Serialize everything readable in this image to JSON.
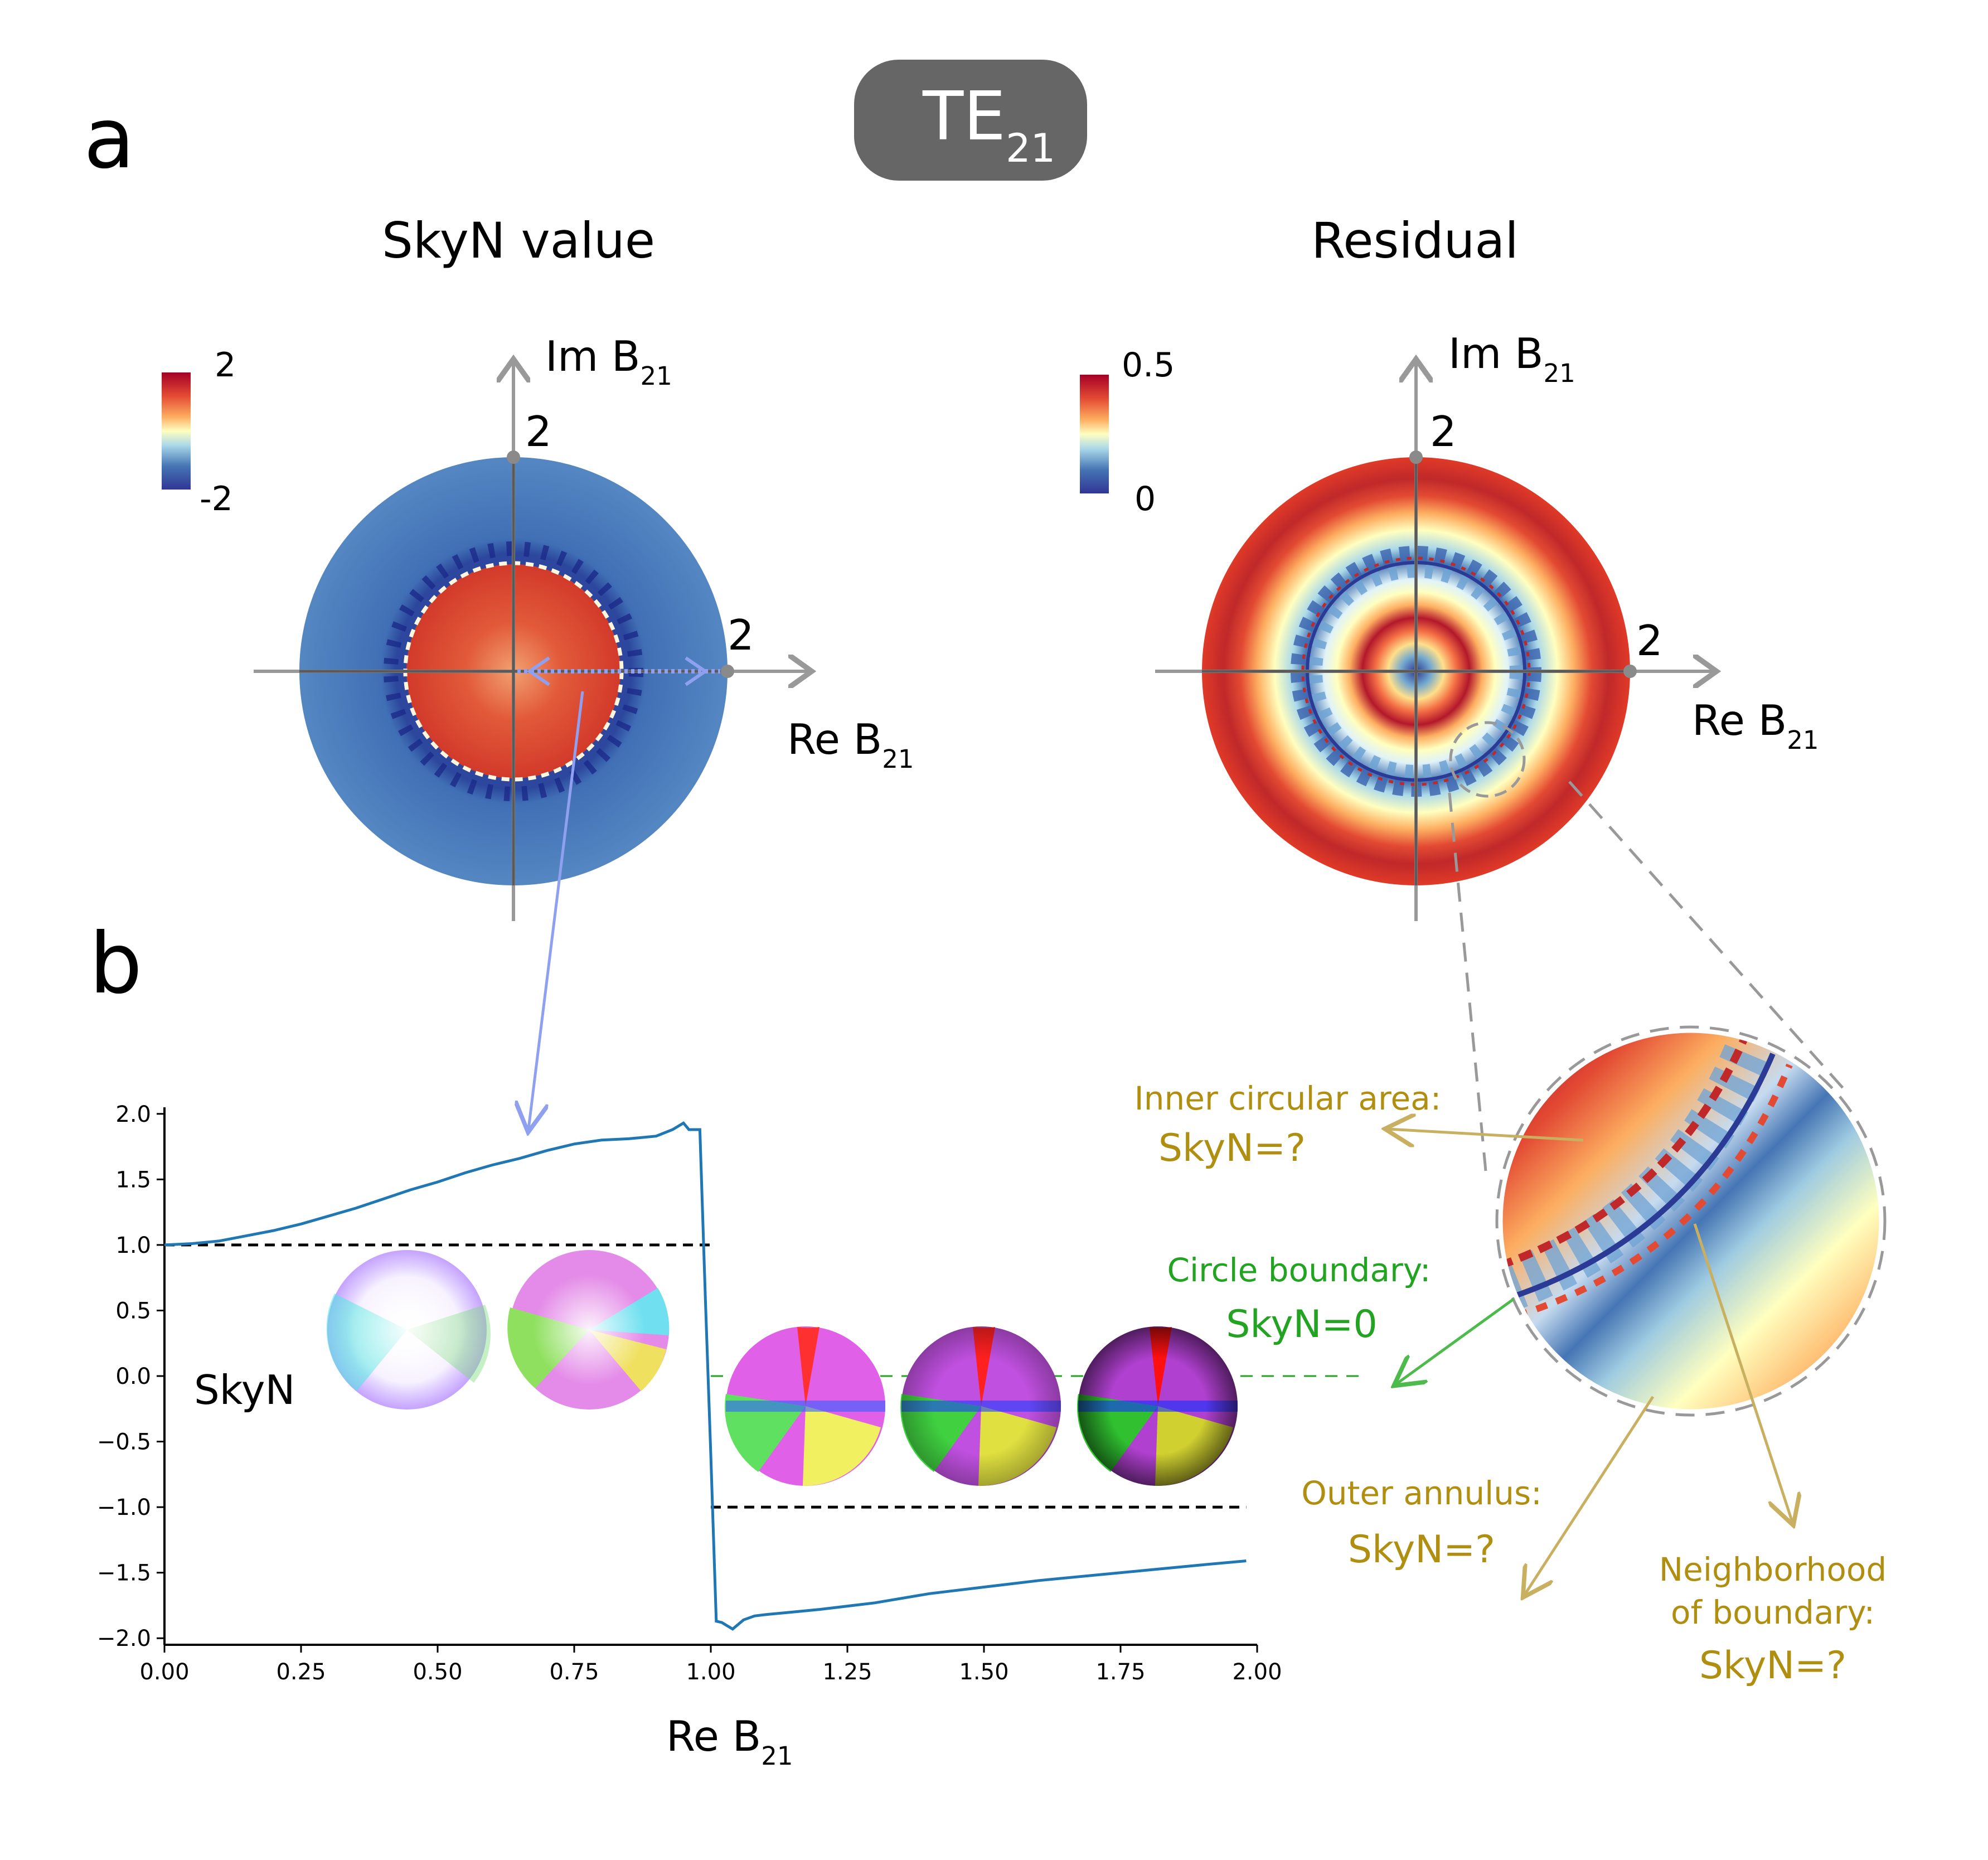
{
  "panel_labels": {
    "a": "a",
    "b": "b"
  },
  "mode_badge": {
    "base": "TE",
    "sub": "21"
  },
  "panel_a": {
    "left": {
      "title": "SkyN value",
      "colorbar": {
        "max": "2",
        "min": "-2"
      },
      "axis_x": {
        "base": "Re B",
        "sub": "21",
        "marker": "2"
      },
      "axis_y": {
        "base": "Im B",
        "sub": "21",
        "marker": "2"
      }
    },
    "right": {
      "title": "Residual",
      "colorbar": {
        "max": "0.5",
        "min": "0"
      },
      "axis_x": {
        "base": "Re B",
        "sub": "21",
        "marker": "2"
      },
      "axis_y": {
        "base": "Im B",
        "sub": "21",
        "marker": "2"
      }
    }
  },
  "annotations": {
    "inner": {
      "line1": "Inner circular area:",
      "line2": "SkyN=?"
    },
    "boundary": {
      "line1": "Circle boundary:",
      "line2": "SkyN=0"
    },
    "outer": {
      "line1": "Outer annulus:",
      "line2": "SkyN=?"
    },
    "neighborhood": {
      "line1": "Neighborhood",
      "line2": "of boundary:",
      "line3": "SkyN=?"
    }
  },
  "colors": {
    "curve": "#1f77b4",
    "skyn_outer": "#4a7fbf",
    "skyn_inner": "#d9442a",
    "annotation_gold": "#b08e10",
    "annotation_green": "#22a322",
    "pointer_blue": "#8fa0f0",
    "badge_bg": "#666666"
  },
  "chart_data": {
    "type": "line",
    "title": "",
    "xlabel": {
      "base": "Re B",
      "sub": "21"
    },
    "ylabel": "SkyN",
    "xlim": [
      0,
      2
    ],
    "ylim": [
      -2.05,
      2.05
    ],
    "xticks": [
      0.0,
      0.25,
      0.5,
      0.75,
      1.0,
      1.25,
      1.5,
      1.75,
      2.0
    ],
    "xtick_labels": [
      "0.00",
      "0.25",
      "0.50",
      "0.75",
      "1.00",
      "1.25",
      "1.50",
      "1.75",
      "2.00"
    ],
    "yticks": [
      2.0,
      1.5,
      1.0,
      0.5,
      0.0,
      -0.5,
      -1.0,
      -1.5,
      -2.0
    ],
    "ytick_labels": [
      "2.0",
      "1.5",
      "1.0",
      "0.5",
      "0.0",
      "−0.5",
      "−1.0",
      "−1.5",
      "−2.0"
    ],
    "series": [
      {
        "name": "SkyN",
        "x": [
          0.0,
          0.05,
          0.1,
          0.15,
          0.2,
          0.25,
          0.3,
          0.35,
          0.4,
          0.45,
          0.5,
          0.55,
          0.6,
          0.65,
          0.7,
          0.75,
          0.8,
          0.85,
          0.9,
          0.93,
          0.95,
          0.96,
          0.98,
          0.99,
          1.0,
          1.01,
          1.02,
          1.04,
          1.06,
          1.08,
          1.1,
          1.15,
          1.2,
          1.3,
          1.4,
          1.5,
          1.6,
          1.7,
          1.8,
          1.9,
          1.98
        ],
        "y": [
          1.0,
          1.01,
          1.03,
          1.07,
          1.11,
          1.16,
          1.22,
          1.28,
          1.35,
          1.42,
          1.48,
          1.55,
          1.61,
          1.66,
          1.72,
          1.77,
          1.8,
          1.81,
          1.83,
          1.88,
          1.93,
          1.88,
          1.88,
          0.6,
          -0.6,
          -1.87,
          -1.88,
          -1.93,
          -1.86,
          -1.83,
          -1.82,
          -1.8,
          -1.78,
          -1.73,
          -1.66,
          -1.61,
          -1.56,
          -1.52,
          -1.48,
          -1.44,
          -1.41
        ]
      }
    ],
    "reference_lines": [
      {
        "y": 1.0,
        "x0": 0.0,
        "x1": 1.0,
        "color": "#000000",
        "style": "dashed"
      },
      {
        "y": -1.0,
        "x0": 1.0,
        "x1": 1.98,
        "color": "#000000",
        "style": "dashed"
      },
      {
        "y": 0.0,
        "x0": 1.0,
        "x1": 2.2,
        "color": "#22a322",
        "style": "dashed"
      }
    ]
  }
}
